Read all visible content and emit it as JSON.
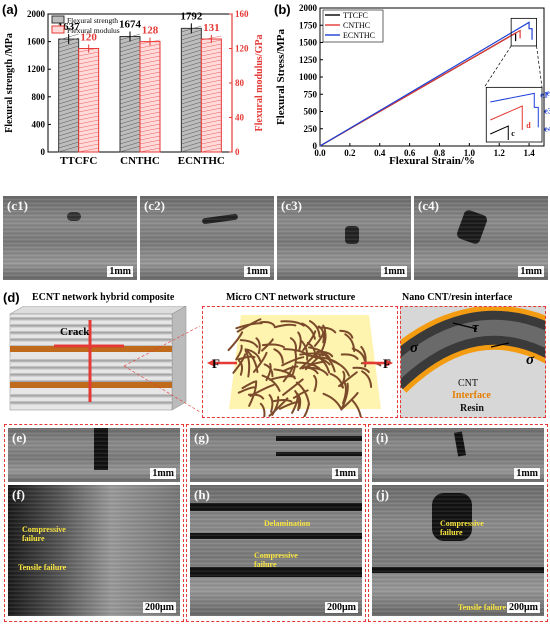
{
  "panel_a": {
    "label": "(a)",
    "ylabel_left": "Flexural strength /MPa",
    "ylabel_right": "Flexural modulus/GPa",
    "legend": [
      "Flexural strength",
      "Flexural modulus"
    ],
    "left_ticks": [
      "0",
      "400",
      "800",
      "1200",
      "1600",
      "2000"
    ],
    "right_ticks": [
      "0",
      "40",
      "80",
      "120",
      "160"
    ],
    "categories": [
      "TTCFC",
      "CNTHC",
      "ECNTHC"
    ],
    "strength_labels": [
      "1637",
      "1674",
      "1792"
    ],
    "modulus_labels": [
      "120",
      "128",
      "131"
    ]
  },
  "panel_b": {
    "label": "(b)",
    "xlabel": "Flexural Strain/%",
    "ylabel": "Flexural Stress/MPa",
    "x_ticks": [
      "0.0",
      "0.2",
      "0.4",
      "0.6",
      "0.8",
      "1.0",
      "1.2",
      "1.4"
    ],
    "y_ticks": [
      "0",
      "250",
      "500",
      "750",
      "1000",
      "1250",
      "1500",
      "1750",
      "2000"
    ],
    "legend": [
      "TTCFC",
      "CNTHC",
      "ECNTHC"
    ],
    "inset_labels": [
      "e1",
      "e2",
      "e3",
      "e4",
      "d",
      "c"
    ]
  },
  "chart_data": [
    {
      "type": "bar",
      "categories": [
        "TTCFC",
        "CNTHC",
        "ECNTHC"
      ],
      "series": [
        {
          "name": "Flexural strength",
          "values": [
            1637,
            1674,
            1792
          ],
          "axis": "left"
        },
        {
          "name": "Flexural modulus",
          "values": [
            120,
            128,
            131
          ],
          "axis": "right"
        }
      ],
      "ylabel": "Flexural strength /MPa",
      "ylabel_right": "Flexural modulus/GPa",
      "ylim": [
        0,
        2000
      ],
      "ylim_right": [
        0,
        160
      ],
      "legend": "top-left"
    },
    {
      "type": "line",
      "xlabel": "Flexural Strain/%",
      "ylabel": "Flexural Stress/MPa",
      "xlim": [
        0,
        1.5
      ],
      "ylim": [
        0,
        2000
      ],
      "legend": "top-left",
      "series": [
        {
          "name": "TTCFC",
          "color": "#000000",
          "x": [
            0,
            1.31,
            1.31
          ],
          "y": [
            0,
            1637,
            1520
          ]
        },
        {
          "name": "CNTHC",
          "color": "#e53935",
          "x": [
            0,
            1.34,
            1.34
          ],
          "y": [
            0,
            1674,
            1560
          ]
        },
        {
          "name": "ECNTHC",
          "color": "#1e40d8",
          "x": [
            0,
            1.4,
            1.4,
            1.42,
            1.42
          ],
          "y": [
            0,
            1792,
            1700,
            1700,
            1540
          ]
        }
      ]
    }
  ],
  "panel_c": {
    "labels": [
      "(c1)",
      "(c2)",
      "(c3)",
      "(c4)"
    ],
    "scale": "1mm"
  },
  "panel_d": {
    "label": "(d)",
    "titles": [
      "ECNT network hybrid composite",
      "Micro CNT network structure",
      "Nano CNT/resin interface"
    ],
    "crack_label": "Crack",
    "force_label": "F",
    "sigma": "σ",
    "tau": "τ",
    "cnt_label": "CNT",
    "interface_label": "Interface",
    "resin_label": "Resin"
  },
  "panel_bottom": {
    "top_labels": [
      "(e)",
      "(g)",
      "(i)"
    ],
    "bottom_labels": [
      "(f)",
      "(h)",
      "(j)"
    ],
    "scale_top": "1mm",
    "scale_bottom": "200μm",
    "f_annotations": [
      "Compressive failure",
      "Tensile failure"
    ],
    "h_annotations": [
      "Delamination",
      "Compressive failure"
    ],
    "j_annotations": [
      "Compressive failure",
      "Tensile failure"
    ]
  },
  "colors": {
    "red": "#e53935",
    "blue": "#1e40d8",
    "orange": "#f39c12",
    "gray_bar": "#6e6e6e"
  }
}
